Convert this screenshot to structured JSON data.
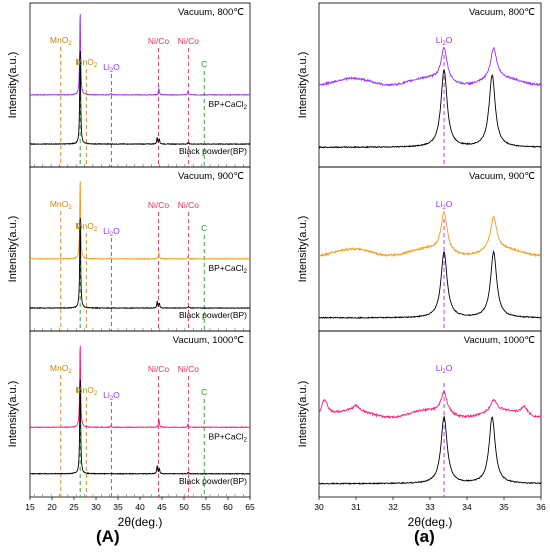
{
  "figure_labels": [
    "(A)",
    "(a)"
  ],
  "colors": {
    "purple": "#9b30ff",
    "orange": "#f39c1d",
    "pink": "#ff1f7a",
    "black": "#000000",
    "mno2": "#c8860a",
    "c": "#1f9e1f",
    "li2o": "#9b30ff",
    "nico": "#e8315a"
  },
  "chart_data": [
    {
      "type": "line",
      "panel": "A",
      "title": "Vacuum, 800℃",
      "ylabel": "Intensity(a.u.)",
      "xlabel": "",
      "xlim": [
        15,
        65
      ],
      "reference_lines": [
        {
          "x": 22.0,
          "label": "MnO2",
          "color": "mno2"
        },
        {
          "x": 26.4,
          "label": "C",
          "color": "c"
        },
        {
          "x": 27.8,
          "label": "MnO2",
          "color": "mno2"
        },
        {
          "x": 33.5,
          "label": "Li2O",
          "color": "li2o"
        },
        {
          "x": 44.2,
          "label": "Ni/Co",
          "color": "nico"
        },
        {
          "x": 51.0,
          "label": "Ni/Co",
          "color": "nico"
        },
        {
          "x": 54.6,
          "label": "C",
          "color": "c"
        }
      ],
      "series": [
        {
          "name": "BP+CaCl2",
          "color": "purple",
          "base": 0.44,
          "peaks": [
            [
              26.4,
              0.52
            ],
            [
              44.3,
              0.04
            ],
            [
              50.9,
              0.02
            ],
            [
              33.4,
              0.01
            ]
          ]
        },
        {
          "name": "Black powder(BP)",
          "color": "black",
          "base": 0.14,
          "peaks": [
            [
              26.4,
              0.6
            ],
            [
              43.9,
              0.04
            ],
            [
              44.4,
              0.03
            ],
            [
              51.0,
              0.01
            ]
          ]
        }
      ]
    },
    {
      "type": "line",
      "panel": "A",
      "title": "Vacuum, 900℃",
      "ylabel": "Intensity(a.u.)",
      "xlabel": "",
      "xlim": [
        15,
        65
      ],
      "reference_lines": [
        {
          "x": 22.0,
          "label": "MnO2",
          "color": "mno2"
        },
        {
          "x": 26.4,
          "label": "C",
          "color": "c"
        },
        {
          "x": 27.8,
          "label": "MnO2",
          "color": "mno2"
        },
        {
          "x": 33.5,
          "label": "Li2O",
          "color": "li2o"
        },
        {
          "x": 44.2,
          "label": "Ni/Co",
          "color": "nico"
        },
        {
          "x": 51.0,
          "label": "Ni/Co",
          "color": "nico"
        },
        {
          "x": 54.6,
          "label": "C",
          "color": "c"
        }
      ],
      "series": [
        {
          "name": "BP+CaCl2",
          "color": "orange",
          "base": 0.44,
          "peaks": [
            [
              26.4,
              0.5
            ],
            [
              44.3,
              0.04
            ],
            [
              50.9,
              0.02
            ],
            [
              33.4,
              0.01
            ]
          ]
        },
        {
          "name": "Black powder(BP)",
          "color": "black",
          "base": 0.14,
          "peaks": [
            [
              26.4,
              0.58
            ],
            [
              43.9,
              0.04
            ],
            [
              44.4,
              0.03
            ],
            [
              51.0,
              0.01
            ]
          ]
        }
      ]
    },
    {
      "type": "line",
      "panel": "A",
      "title": "Vacuum, 1000℃",
      "ylabel": "Intensity(a.u.)",
      "xlabel": "2θ(deg.)",
      "xlim": [
        15,
        65
      ],
      "xticks": [
        15,
        20,
        25,
        30,
        35,
        40,
        45,
        50,
        55,
        60,
        65
      ],
      "reference_lines": [
        {
          "x": 22.0,
          "label": "MnO2",
          "color": "mno2"
        },
        {
          "x": 26.4,
          "label": "C",
          "color": "c"
        },
        {
          "x": 27.8,
          "label": "MnO2",
          "color": "mno2"
        },
        {
          "x": 33.5,
          "label": "Li2O",
          "color": "li2o"
        },
        {
          "x": 44.2,
          "label": "Ni/Co",
          "color": "nico"
        },
        {
          "x": 51.0,
          "label": "Ni/Co",
          "color": "nico"
        },
        {
          "x": 54.6,
          "label": "C",
          "color": "c"
        }
      ],
      "series": [
        {
          "name": "BP+CaCl2",
          "color": "pink",
          "base": 0.42,
          "peaks": [
            [
              26.4,
              0.52
            ],
            [
              44.3,
              0.05
            ],
            [
              50.9,
              0.02
            ],
            [
              33.4,
              0.01
            ]
          ]
        },
        {
          "name": "Black powder(BP)",
          "color": "black",
          "base": 0.14,
          "peaks": [
            [
              26.4,
              0.6
            ],
            [
              43.9,
              0.05
            ],
            [
              44.4,
              0.03
            ],
            [
              51.0,
              0.01
            ]
          ]
        }
      ]
    },
    {
      "type": "line",
      "panel": "a",
      "title": "Vacuum, 800℃",
      "ylabel": "Intensity(a.u.)",
      "xlabel": "",
      "xlim": [
        30,
        36
      ],
      "reference_lines": [
        {
          "x": 33.38,
          "label": "Li2O",
          "color": "li2o"
        }
      ],
      "series": [
        {
          "name": "BP+CaCl2",
          "color": "purple",
          "base": 0.52,
          "peaks": [
            [
              33.38,
              0.2
            ],
            [
              34.72,
              0.19
            ]
          ]
        },
        {
          "name": "Black powder(BP)",
          "color": "black",
          "base": 0.12,
          "peaks": [
            [
              33.38,
              0.47
            ],
            [
              34.68,
              0.44
            ]
          ]
        }
      ]
    },
    {
      "type": "line",
      "panel": "a",
      "title": "Vacuum, 900℃",
      "ylabel": "Intensity(a.u.)",
      "xlabel": "",
      "xlim": [
        30,
        36
      ],
      "reference_lines": [
        {
          "x": 33.38,
          "label": "Li2O",
          "color": "li2o"
        }
      ],
      "series": [
        {
          "name": "BP+CaCl2",
          "color": "orange",
          "base": 0.48,
          "peaks": [
            [
              33.38,
              0.24
            ],
            [
              34.72,
              0.2
            ]
          ]
        },
        {
          "name": "Black powder(BP)",
          "color": "black",
          "base": 0.08,
          "peaks": [
            [
              33.38,
              0.4
            ],
            [
              34.72,
              0.4
            ]
          ]
        }
      ]
    },
    {
      "type": "line",
      "panel": "a",
      "title": "Vacuum, 1000℃",
      "ylabel": "Intensity(a.u.)",
      "xlabel": "2θ(deg.)",
      "xlim": [
        30,
        36
      ],
      "xticks": [
        30,
        31,
        32,
        33,
        34,
        35,
        36
      ],
      "reference_lines": [
        {
          "x": 33.38,
          "label": "Li2O",
          "color": "li2o"
        }
      ],
      "series": [
        {
          "name": "BP+CaCl2",
          "color": "pink",
          "base": 0.5,
          "peaks": [
            [
              30.15,
              0.1
            ],
            [
              31.0,
              0.03
            ],
            [
              33.38,
              0.13
            ],
            [
              34.72,
              0.07
            ],
            [
              35.55,
              0.05
            ]
          ]
        },
        {
          "name": "Black powder(BP)",
          "color": "black",
          "base": 0.08,
          "peaks": [
            [
              33.38,
              0.4
            ],
            [
              34.68,
              0.4
            ]
          ]
        }
      ]
    }
  ]
}
